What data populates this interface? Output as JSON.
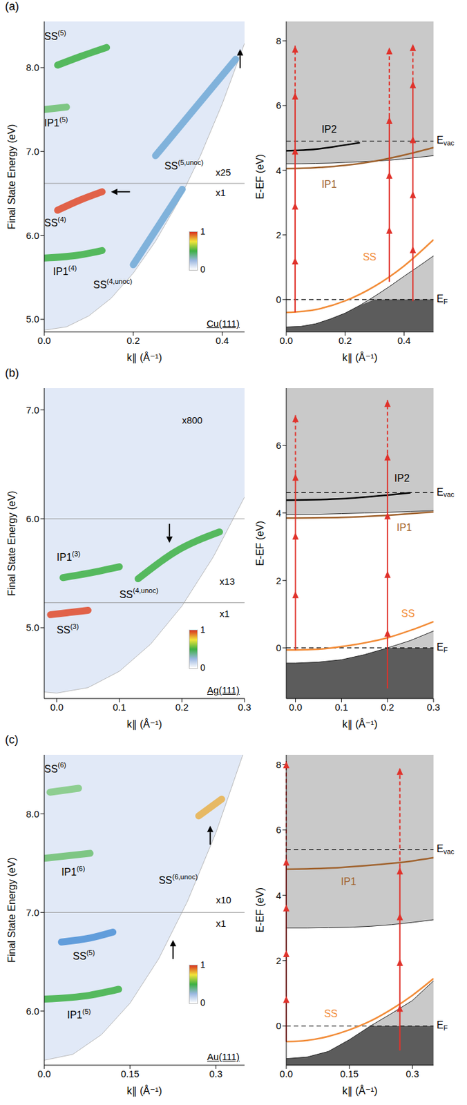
{
  "chart_data": [
    {
      "type": "heatmap",
      "panel": "(a)",
      "substrate": "Cu(111)",
      "xlabel": "k∥ (Å⁻¹)",
      "ylabel": "Final State Energy (eV)",
      "xlim": [
        0,
        0.45
      ],
      "xticks": [
        {
          "value": 0,
          "label": "0.0"
        },
        {
          "value": 0.2,
          "label": "0.2"
        },
        {
          "value": 0.4,
          "label": "0.4"
        }
      ],
      "ylim": [
        4.85,
        8.55
      ],
      "yticks": [
        {
          "value": 5,
          "label": "5.0"
        },
        {
          "value": 6,
          "label": "6.0"
        },
        {
          "value": 7,
          "label": "7.0"
        },
        {
          "value": 8,
          "label": "8.0"
        }
      ],
      "edge": {
        "x": [
          0,
          0.05,
          0.1,
          0.15,
          0.2,
          0.25,
          0.3,
          0.35,
          0.4,
          0.45
        ],
        "y": [
          4.87,
          4.91,
          5.04,
          5.25,
          5.55,
          5.93,
          6.39,
          6.94,
          7.57,
          8.29
        ]
      },
      "series": [
        {
          "name": "SS(5)",
          "color": "#3cb043",
          "x": [
            0.03,
            0.08,
            0.14
          ],
          "y": [
            8.03,
            8.13,
            8.24
          ],
          "label_at": [
            0.0,
            8.36
          ]
        },
        {
          "name": "IP1(5)",
          "color": "#6cc070",
          "x": [
            0.0,
            0.05
          ],
          "y": [
            7.5,
            7.53
          ],
          "label_at": [
            0.0,
            7.33
          ]
        },
        {
          "name": "SS(5,unoc)",
          "color": "#6fa8d6",
          "x": [
            0.25,
            0.43
          ],
          "y": [
            6.95,
            8.1
          ],
          "label_at": [
            0.27,
            6.82
          ]
        },
        {
          "name": "SS(4)",
          "color": "#e04a2a",
          "x": [
            0.03,
            0.08,
            0.13
          ],
          "y": [
            6.3,
            6.42,
            6.52
          ],
          "label_at": [
            0.0,
            6.14
          ]
        },
        {
          "name": "IP1(4)",
          "color": "#3cb043",
          "x": [
            0.0,
            0.07,
            0.13
          ],
          "y": [
            5.73,
            5.76,
            5.82
          ],
          "label_at": [
            0.02,
            5.56
          ]
        },
        {
          "name": "SS(4,unoc)",
          "color": "#6fa8d6",
          "x": [
            0.2,
            0.31
          ],
          "y": [
            5.65,
            6.55
          ],
          "label_at": [
            0.11,
            5.4
          ]
        }
      ],
      "scale_labels": [
        {
          "text": "x25",
          "x": 0.385,
          "y": 6.74
        },
        {
          "text": "x1",
          "x": 0.385,
          "y": 6.5
        }
      ],
      "scale_boundaries": [
        6.62
      ],
      "arrows": [
        {
          "x": 0.44,
          "y": 8.22,
          "direction": "up"
        },
        {
          "x": 0.15,
          "y": 6.52,
          "direction": "left"
        }
      ],
      "colorbar": {
        "range": [
          0,
          1
        ],
        "ticks": [
          0,
          1
        ]
      }
    },
    {
      "type": "line",
      "xlabel": "k∥ (Å⁻¹)",
      "ylabel": "E-EF (eV)",
      "xlim": [
        0,
        0.5
      ],
      "xticks": [
        {
          "value": 0,
          "label": "0.0"
        },
        {
          "value": 0.2,
          "label": "0.2"
        },
        {
          "value": 0.4,
          "label": "0.4"
        }
      ],
      "ylim": [
        -1,
        8.6
      ],
      "yticks": [
        0,
        2,
        4,
        6,
        8
      ],
      "gap": {
        "x": [
          0,
          0.05,
          0.1,
          0.15,
          0.2,
          0.25,
          0.3,
          0.35,
          0.4,
          0.45,
          0.5
        ],
        "lower": [
          -0.85,
          -0.83,
          -0.75,
          -0.6,
          -0.42,
          -0.18,
          0.1,
          0.4,
          0.72,
          1.03,
          1.35
        ],
        "upper": [
          4.2,
          4.2,
          4.21,
          4.22,
          4.24,
          4.26,
          4.28,
          4.31,
          4.35,
          4.4,
          4.45
        ]
      },
      "series": [
        {
          "name": "SS",
          "color": "#f28c38",
          "x": [
            0,
            0.1,
            0.2,
            0.3,
            0.4,
            0.5
          ],
          "y": [
            -0.4,
            -0.31,
            -0.04,
            0.41,
            1.04,
            1.85
          ],
          "label_at": [
            0.26,
            1.3
          ]
        },
        {
          "name": "IP1",
          "color": "#a0622d",
          "x": [
            0,
            0.1,
            0.2,
            0.3,
            0.4,
            0.5
          ],
          "y": [
            4.05,
            4.08,
            4.15,
            4.28,
            4.47,
            4.7
          ],
          "label_at": [
            0.12,
            3.55
          ]
        },
        {
          "name": "IP2",
          "color": "#000000",
          "x": [
            0,
            0.1,
            0.2,
            0.25
          ],
          "y": [
            4.6,
            4.65,
            4.78,
            4.85
          ],
          "label_at": [
            0.12,
            5.25
          ]
        }
      ],
      "levels": [
        {
          "name": "EF",
          "y": 0
        },
        {
          "name": "Evac",
          "y": 4.9
        }
      ],
      "photons": [
        {
          "x": 0.03,
          "from": -0.4,
          "heads": [
            1.3,
            3.0,
            4.7,
            6.4
          ],
          "to": 7.85
        },
        {
          "x": 0.35,
          "from": 0.55,
          "heads": [
            2.25,
            3.95,
            5.65
          ],
          "to": 7.8
        },
        {
          "x": 0.43,
          "from": -0.05,
          "heads": [
            1.65,
            3.35,
            5.05,
            6.75
          ],
          "to": 7.9
        }
      ]
    },
    {
      "type": "heatmap",
      "panel": "(b)",
      "substrate": "Ag(111)",
      "xlabel": "k∥ (Å⁻¹)",
      "ylabel": "Final State Energy (eV)",
      "xlim": [
        -0.02,
        0.3
      ],
      "xticks": [
        {
          "value": 0,
          "label": "0.0"
        },
        {
          "value": 0.1,
          "label": "0.1"
        },
        {
          "value": 0.2,
          "label": "0.2"
        },
        {
          "value": 0.3,
          "label": "0.3"
        }
      ],
      "ylim": [
        4.35,
        7.2
      ],
      "yticks": [
        {
          "value": 5,
          "label": "5.0"
        },
        {
          "value": 6,
          "label": "6.0"
        },
        {
          "value": 7,
          "label": "7.0"
        }
      ],
      "edge": {
        "x": [
          -0.02,
          0,
          0.05,
          0.1,
          0.15,
          0.2,
          0.25,
          0.3
        ],
        "y": [
          4.41,
          4.4,
          4.45,
          4.6,
          4.85,
          5.2,
          5.65,
          6.2
        ]
      },
      "series": [
        {
          "name": "SS(3)",
          "color": "#e04a2a",
          "x": [
            -0.01,
            0.02,
            0.05
          ],
          "y": [
            5.12,
            5.14,
            5.16
          ],
          "label_at": [
            0.0,
            4.97
          ]
        },
        {
          "name": "IP1(3)",
          "color": "#3cb043",
          "x": [
            0.01,
            0.05,
            0.1
          ],
          "y": [
            5.46,
            5.5,
            5.56
          ],
          "label_at": [
            0.0,
            5.64
          ]
        },
        {
          "name": "SS(4,unoc)",
          "color": "#3cb043",
          "x": [
            0.13,
            0.19,
            0.26
          ],
          "y": [
            5.45,
            5.7,
            5.88
          ],
          "label_at": [
            0.1,
            5.3
          ]
        }
      ],
      "scale_labels": [
        {
          "text": "x800",
          "x": 0.2,
          "y": 6.9
        },
        {
          "text": "x13",
          "x": 0.26,
          "y": 5.42
        },
        {
          "text": "x1",
          "x": 0.26,
          "y": 5.12
        }
      ],
      "scale_boundaries": [
        6.0,
        5.23
      ],
      "arrows": [
        {
          "x": 0.18,
          "y": 5.78,
          "direction": "down"
        }
      ],
      "colorbar": {
        "range": [
          0,
          1
        ],
        "ticks": [
          0,
          1
        ]
      }
    },
    {
      "type": "line",
      "xlabel": "k∥ (Å⁻¹)",
      "ylabel": "E-EF (eV)",
      "xlim": [
        -0.02,
        0.3
      ],
      "xticks": [
        {
          "value": 0,
          "label": "0.0"
        },
        {
          "value": 0.1,
          "label": "0.1"
        },
        {
          "value": 0.2,
          "label": "0.2"
        },
        {
          "value": 0.3,
          "label": "0.3"
        }
      ],
      "ylim": [
        -1.5,
        7.7
      ],
      "yticks": [
        0,
        2,
        4,
        6
      ],
      "gap": {
        "x": [
          -0.02,
          0,
          0.05,
          0.1,
          0.15,
          0.2,
          0.25,
          0.3
        ],
        "lower": [
          -0.45,
          -0.45,
          -0.42,
          -0.35,
          -0.2,
          0.0,
          0.22,
          0.5
        ],
        "upper": [
          3.95,
          3.95,
          3.96,
          3.98,
          4.0,
          4.02,
          4.04,
          4.07
        ]
      },
      "series": [
        {
          "name": "SS",
          "color": "#f28c38",
          "x": [
            -0.02,
            0,
            0.05,
            0.1,
            0.15,
            0.2,
            0.25,
            0.3
          ],
          "y": [
            -0.06,
            -0.06,
            -0.04,
            0.04,
            0.15,
            0.3,
            0.52,
            0.78
          ],
          "label_at": [
            0.23,
            1.0
          ]
        },
        {
          "name": "IP1",
          "color": "#a0622d",
          "x": [
            -0.02,
            0.1,
            0.2,
            0.3
          ],
          "y": [
            3.85,
            3.87,
            3.93,
            4.03
          ],
          "label_at": [
            0.22,
            3.55
          ]
        },
        {
          "name": "IP2",
          "color": "#000000",
          "x": [
            -0.02,
            0.1,
            0.2,
            0.25
          ],
          "y": [
            4.38,
            4.42,
            4.53,
            4.6
          ],
          "label_at": [
            0.215,
            5.0
          ]
        }
      ],
      "levels": [
        {
          "name": "EF",
          "y": 0
        },
        {
          "name": "Evac",
          "y": 4.6
        }
      ],
      "photons": [
        {
          "x": 0,
          "from": -0.06,
          "heads": [
            1.68,
            3.42,
            5.16
          ],
          "to": 6.9
        },
        {
          "x": 0.2,
          "from": -1.2,
          "heads": [
            0.54,
            2.28,
            4.02,
            5.76
          ],
          "to": 7.35
        }
      ]
    },
    {
      "type": "heatmap",
      "panel": "(c)",
      "substrate": "Au(111)",
      "xlabel": "k∥ (Å⁻¹)",
      "ylabel": "Final State Energy (eV)",
      "xlim": [
        0,
        0.35
      ],
      "xticks": [
        {
          "value": 0,
          "label": "0.0"
        },
        {
          "value": 0.15,
          "label": "0.15"
        },
        {
          "value": 0.3,
          "label": "0.3"
        }
      ],
      "ylim": [
        5.45,
        8.6
      ],
      "yticks": [
        {
          "value": 6,
          "label": "6.0"
        },
        {
          "value": 7,
          "label": "7.0"
        },
        {
          "value": 8,
          "label": "8.0"
        }
      ],
      "edge": {
        "x": [
          0,
          0.05,
          0.1,
          0.15,
          0.2,
          0.25,
          0.3,
          0.35
        ],
        "y": [
          5.5,
          5.56,
          5.76,
          6.08,
          6.53,
          7.11,
          7.81,
          8.65
        ]
      },
      "series": [
        {
          "name": "SS(6)",
          "color": "#7fc97f",
          "x": [
            0.01,
            0.06
          ],
          "y": [
            8.22,
            8.26
          ],
          "label_at": [
            0.0,
            8.45
          ]
        },
        {
          "name": "IP1(6)",
          "color": "#6cc070",
          "x": [
            0.0,
            0.08
          ],
          "y": [
            7.55,
            7.6
          ],
          "label_at": [
            0.03,
            7.4
          ]
        },
        {
          "name": "SS(6,unoc)",
          "color": "#e8b04a",
          "x": [
            0.27,
            0.31
          ],
          "y": [
            7.98,
            8.15
          ],
          "label_at": [
            0.2,
            7.32
          ]
        },
        {
          "name": "SS(5)",
          "color": "#4a8fd6",
          "x": [
            0.03,
            0.08,
            0.12
          ],
          "y": [
            6.7,
            6.74,
            6.8
          ],
          "label_at": [
            0.05,
            6.55
          ]
        },
        {
          "name": "IP1(5)",
          "color": "#3cb043",
          "x": [
            0.0,
            0.08,
            0.13
          ],
          "y": [
            6.12,
            6.16,
            6.22
          ],
          "label_at": [
            0.04,
            5.95
          ]
        }
      ],
      "scale_labels": [
        {
          "text": "x10",
          "x": 0.3,
          "y": 7.12
        },
        {
          "text": "x1",
          "x": 0.3,
          "y": 6.88
        }
      ],
      "scale_boundaries": [
        7.0
      ],
      "arrows": [
        {
          "x": 0.29,
          "y": 7.88,
          "direction": "up"
        },
        {
          "x": 0.225,
          "y": 6.72,
          "direction": "up"
        }
      ],
      "colorbar": {
        "range": [
          0,
          1
        ],
        "ticks": [
          0,
          1
        ]
      }
    },
    {
      "type": "line",
      "xlabel": "k∥ (Å⁻¹)",
      "ylabel": "E-EF (eV)",
      "xlim": [
        0,
        0.35
      ],
      "xticks": [
        {
          "value": 0,
          "label": "0.0"
        },
        {
          "value": 0.15,
          "label": "0.15"
        },
        {
          "value": 0.3,
          "label": "0.3"
        }
      ],
      "ylim": [
        -1.2,
        8.3
      ],
      "yticks": [
        0,
        2,
        4,
        6,
        8
      ],
      "gap": {
        "x": [
          0,
          0.05,
          0.1,
          0.15,
          0.2,
          0.25,
          0.3,
          0.35
        ],
        "lower": [
          -1.0,
          -0.95,
          -0.78,
          -0.42,
          0.0,
          0.38,
          0.78,
          1.38
        ],
        "upper": [
          3.0,
          3.0,
          3.01,
          3.02,
          3.05,
          3.1,
          3.17,
          3.25
        ]
      },
      "series": [
        {
          "name": "SS",
          "color": "#f28c38",
          "x": [
            0,
            0.05,
            0.1,
            0.15,
            0.2,
            0.25,
            0.3,
            0.35
          ],
          "y": [
            -0.48,
            -0.44,
            -0.32,
            -0.12,
            0.15,
            0.51,
            0.94,
            1.45
          ],
          "label_at": [
            0.09,
            0.35
          ]
        },
        {
          "name": "IP1",
          "color": "#a0622d",
          "x": [
            0,
            0.1,
            0.2,
            0.3,
            0.35
          ],
          "y": [
            4.8,
            4.83,
            4.92,
            5.05,
            5.15
          ],
          "label_at": [
            0.13,
            4.4
          ]
        }
      ],
      "levels": [
        {
          "name": "EF",
          "y": 0
        },
        {
          "name": "Evac",
          "y": 5.4
        }
      ],
      "photons": [
        {
          "x": 0,
          "from": -0.48,
          "heads": [
            0.92,
            2.32,
            3.72,
            5.12
          ],
          "to": 8.1
        },
        {
          "x": 0.27,
          "from": -0.75,
          "heads": [
            0.65,
            2.05,
            3.45,
            4.85
          ],
          "to": 7.9
        }
      ]
    }
  ]
}
